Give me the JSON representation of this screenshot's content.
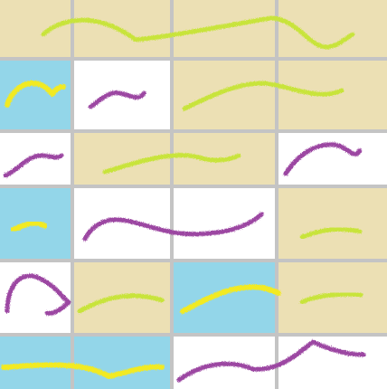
{
  "palette": {
    "sand": "#ece0b4",
    "sky": "#93d6e9",
    "white": "#ffffff",
    "grid": "#c4c4c4",
    "lime": "#c8e43a",
    "yellow": "#f2ea22",
    "purple": "#9c46a2"
  },
  "grid": {
    "rows": 6,
    "cols": 4,
    "tiles": [
      [
        "sand",
        "sand",
        "sand",
        "sand"
      ],
      [
        "sky",
        "white",
        "sand",
        "sand"
      ],
      [
        "white",
        "sand",
        "sand",
        "white"
      ],
      [
        "sky",
        "white",
        "white",
        "sand"
      ],
      [
        "white",
        "sand",
        "sky",
        "sand"
      ],
      [
        "sky",
        "sky",
        "white",
        "white"
      ]
    ]
  },
  "strokes": [
    {
      "name": "stroke-lime-top",
      "color": "lime"
    },
    {
      "name": "stroke-yellow-r2",
      "color": "yellow"
    },
    {
      "name": "stroke-purple-r2",
      "color": "purple"
    },
    {
      "name": "stroke-lime-r2",
      "color": "lime"
    },
    {
      "name": "stroke-purple-r3a",
      "color": "purple"
    },
    {
      "name": "stroke-lime-r3",
      "color": "lime"
    },
    {
      "name": "stroke-purple-r3b",
      "color": "purple"
    },
    {
      "name": "stroke-yellow-r4",
      "color": "yellow"
    },
    {
      "name": "stroke-purple-r4",
      "color": "purple"
    },
    {
      "name": "stroke-lime-r4",
      "color": "lime"
    },
    {
      "name": "stroke-purple-r5",
      "color": "purple"
    },
    {
      "name": "stroke-lime-r5a",
      "color": "lime"
    },
    {
      "name": "stroke-lime-r5b",
      "color": "yellow"
    },
    {
      "name": "stroke-lime-r5c",
      "color": "lime"
    },
    {
      "name": "stroke-yellow-r6",
      "color": "yellow"
    },
    {
      "name": "stroke-purple-r6",
      "color": "purple"
    }
  ]
}
